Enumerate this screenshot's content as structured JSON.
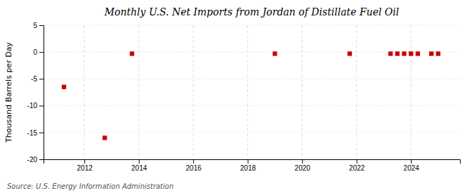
{
  "chart_data": {
    "type": "scatter",
    "title": "Monthly U.S. Net Imports from Jordan of Distillate Fuel Oil",
    "ylabel": "Thousand Barrels per Day",
    "annotations": [
      "Source: U.S. Energy Information Administration"
    ],
    "x": [
      2011.25,
      2012.75,
      2013.75,
      2019.0,
      2021.75,
      2023.25,
      2023.5,
      2023.75,
      2024.0,
      2024.25,
      2024.75,
      2025.0
    ],
    "values": [
      -6.5,
      -16.0,
      -0.3,
      -0.3,
      -0.3,
      -0.3,
      -0.3,
      -0.3,
      -0.3,
      -0.3,
      -0.3,
      -0.3
    ],
    "color": "#cc0000",
    "marker": "square",
    "xlim": [
      2010.5,
      2025.8
    ],
    "ylim": [
      -20,
      5
    ],
    "xticks": [
      2012,
      2014,
      2016,
      2018,
      2020,
      2022,
      2024
    ],
    "yticks": [
      5,
      0,
      -5,
      -10,
      -15,
      -20
    ],
    "grid": true
  }
}
